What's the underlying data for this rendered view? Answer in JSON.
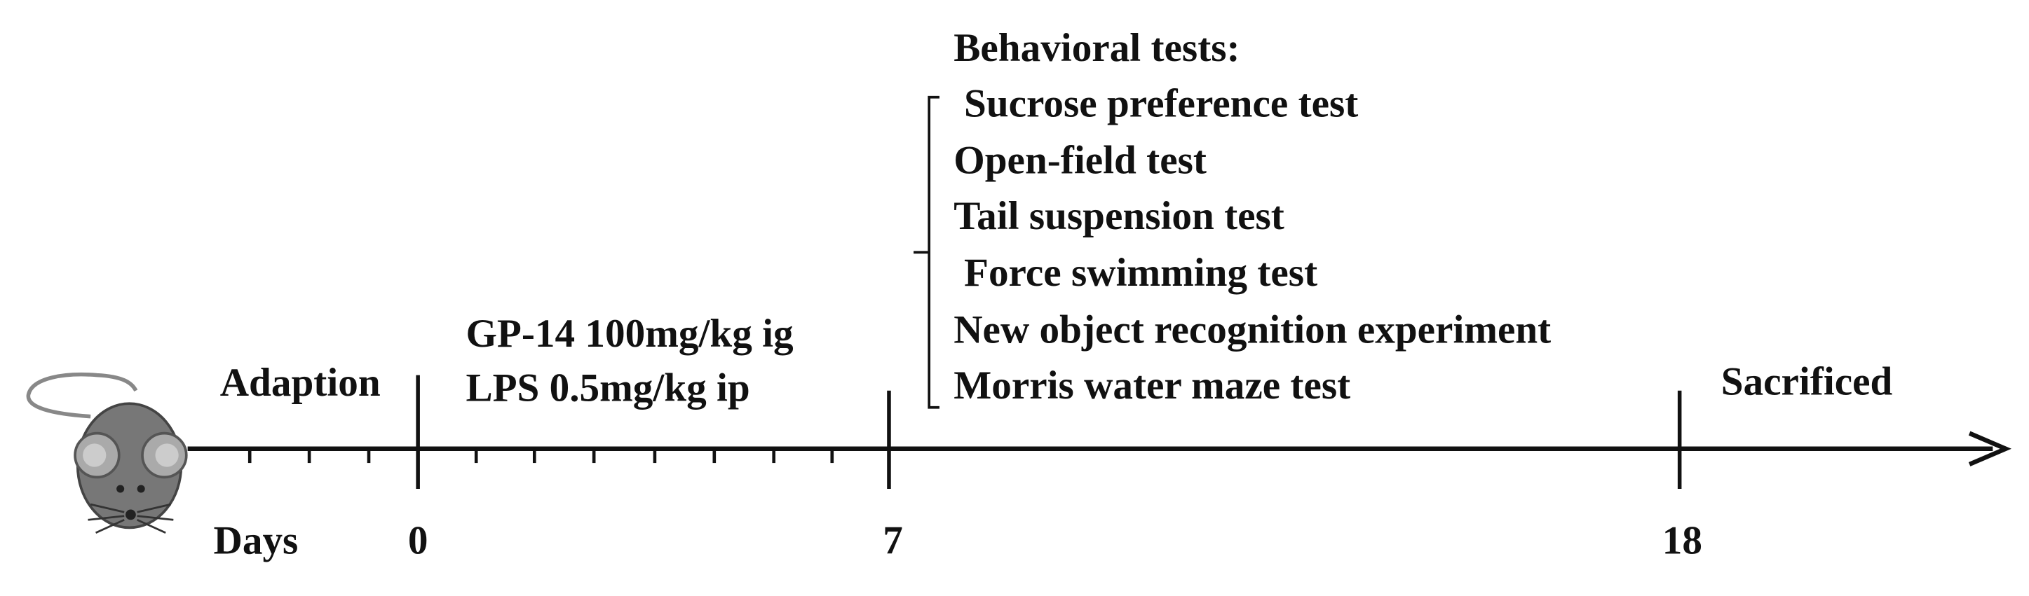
{
  "timeline": {
    "axis_label": "Days",
    "days": [
      "0",
      "7",
      "18"
    ],
    "phases": {
      "adaption": "Adaption",
      "treatment": [
        "GP-14 100mg/kg ig",
        "LPS 0.5mg/kg ip"
      ],
      "end": "Sacrificed"
    },
    "behavioral_tests": {
      "title": "Behavioral tests:",
      "items": [
        "Sucrose preference test",
        "Open-field test",
        "Tail suspension test",
        "Force swimming test",
        "New object recognition experiment",
        "Morris water maze test"
      ]
    }
  }
}
